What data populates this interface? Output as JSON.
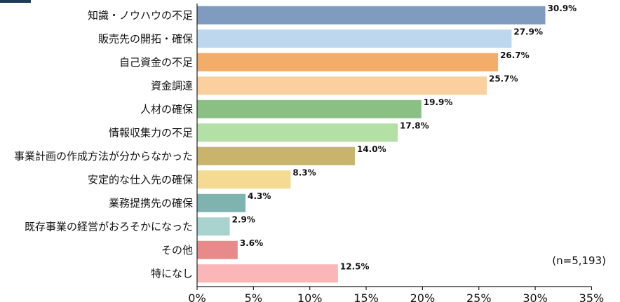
{
  "chart_data": {
    "type": "bar",
    "orientation": "horizontal",
    "categories": [
      "知識・ノウハウの不足",
      "販売先の開拓・確保",
      "自己資金の不足",
      "資金調達",
      "人材の確保",
      "情報収集力の不足",
      "事業計画の作成方法が分からなかった",
      "安定的な仕入先の確保",
      "業務提携先の確保",
      "既存事業の経営がおろそかになった",
      "その他",
      "特になし"
    ],
    "values": [
      30.9,
      27.9,
      26.7,
      25.7,
      19.9,
      17.8,
      14.0,
      8.3,
      4.3,
      2.9,
      3.6,
      12.5
    ],
    "value_labels": [
      "30.9%",
      "27.9%",
      "26.7%",
      "25.7%",
      "19.9%",
      "17.8%",
      "14.0%",
      "8.3%",
      "4.3%",
      "2.9%",
      "3.6%",
      "12.5%"
    ],
    "colors": [
      "#7f9cc0",
      "#bcd7ee",
      "#f2ad6a",
      "#fbcf9e",
      "#8ac084",
      "#b2e0a5",
      "#c9b46c",
      "#f4da93",
      "#7fb3b0",
      "#a9d3cf",
      "#e98a8a",
      "#fbb6b7"
    ],
    "xlim": [
      0,
      35
    ],
    "xticks": [
      "0%",
      "5%",
      "10%",
      "15%",
      "20%",
      "25%",
      "30%",
      "35%"
    ],
    "note": "(n=5,193)",
    "title": "",
    "xlabel": "",
    "ylabel": "",
    "grid": false,
    "legend": "none"
  }
}
